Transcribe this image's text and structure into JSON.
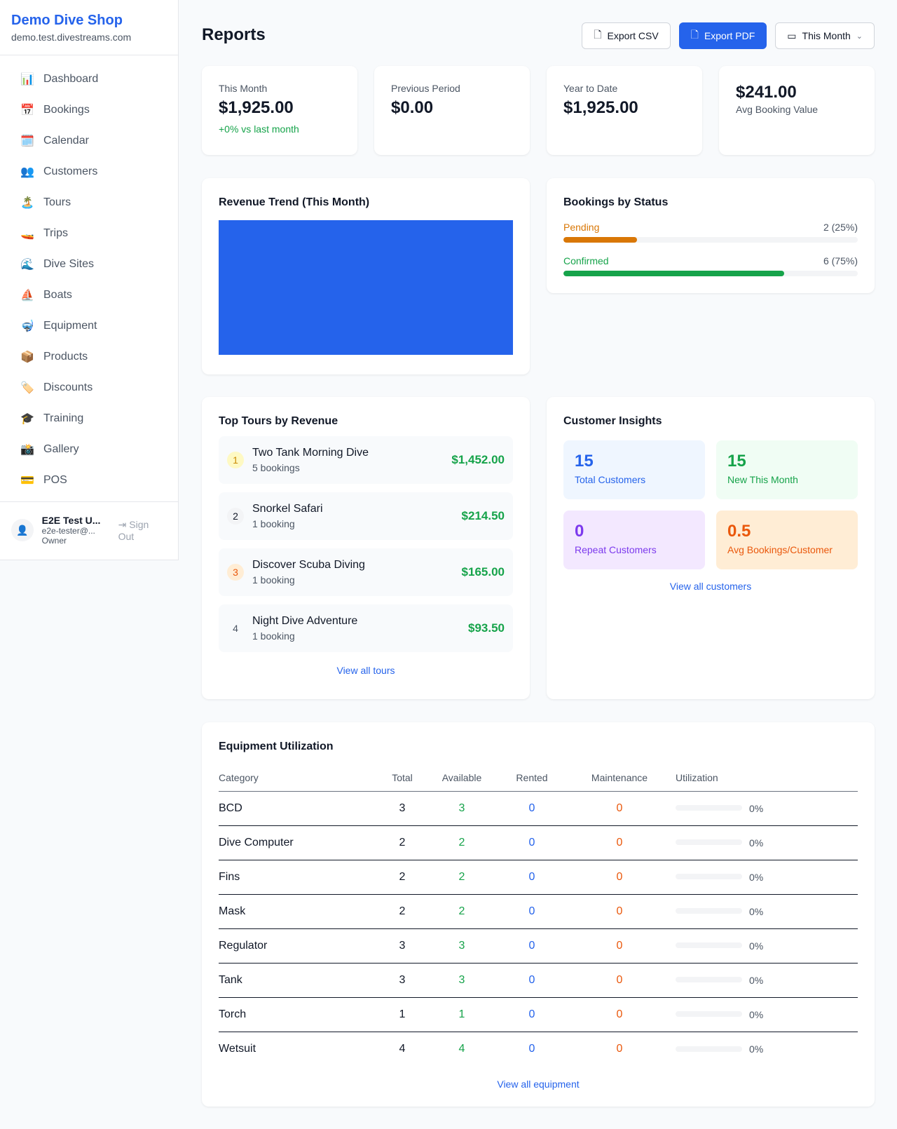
{
  "sidebar": {
    "brand": "Demo Dive Shop",
    "url": "demo.test.divestreams.com",
    "items": [
      {
        "label": "Dashboard",
        "icon": "📊",
        "name": "dashboard"
      },
      {
        "label": "Bookings",
        "icon": "📅",
        "name": "bookings"
      },
      {
        "label": "Calendar",
        "icon": "🗓️",
        "name": "calendar"
      },
      {
        "label": "Customers",
        "icon": "👥",
        "name": "customers"
      },
      {
        "label": "Tours",
        "icon": "🏝️",
        "name": "tours"
      },
      {
        "label": "Trips",
        "icon": "🚤",
        "name": "trips"
      },
      {
        "label": "Dive Sites",
        "icon": "🌊",
        "name": "dive-sites"
      },
      {
        "label": "Boats",
        "icon": "⛵",
        "name": "boats"
      },
      {
        "label": "Equipment",
        "icon": "🤿",
        "name": "equipment"
      },
      {
        "label": "Products",
        "icon": "📦",
        "name": "products"
      },
      {
        "label": "Discounts",
        "icon": "🏷️",
        "name": "discounts"
      },
      {
        "label": "Training",
        "icon": "🎓",
        "name": "training"
      },
      {
        "label": "Gallery",
        "icon": "📸",
        "name": "gallery"
      },
      {
        "label": "POS",
        "icon": "💳",
        "name": "pos"
      }
    ],
    "user": {
      "name": "E2E Test U...",
      "email": "e2e-tester@...",
      "role": "Owner",
      "sign_out": "Sign Out"
    }
  },
  "header": {
    "title": "Reports",
    "export_csv": "Export CSV",
    "export_pdf": "Export PDF",
    "period": "This Month"
  },
  "stats": [
    {
      "label": "This Month",
      "value": "$1,925.00",
      "sub": "+0% vs last month"
    },
    {
      "label": "Previous Period",
      "value": "$0.00"
    },
    {
      "label": "Year to Date",
      "value": "$1,925.00"
    },
    {
      "value": "$241.00",
      "label": "Avg Booking Value"
    }
  ],
  "revenue": {
    "title": "Revenue Trend (This Month)",
    "color": "#2563eb"
  },
  "status": {
    "title": "Bookings by Status",
    "items": [
      {
        "label": "Pending",
        "count": "2 (25%)",
        "percent": 25,
        "color": "#d97706"
      },
      {
        "label": "Confirmed",
        "count": "6 (75%)",
        "percent": 75,
        "color": "#16a34a"
      }
    ]
  },
  "tours": {
    "title": "Top Tours by Revenue",
    "link": "View all tours",
    "items": [
      {
        "rank": "1",
        "name": "Two Tank Morning Dive",
        "count": "5 bookings",
        "revenue": "$1,452.00"
      },
      {
        "rank": "2",
        "name": "Snorkel Safari",
        "count": "1 booking",
        "revenue": "$214.50"
      },
      {
        "rank": "3",
        "name": "Discover Scuba Diving",
        "count": "1 booking",
        "revenue": "$165.00"
      },
      {
        "rank": "4",
        "name": "Night Dive Adventure",
        "count": "1 booking",
        "revenue": "$93.50"
      }
    ]
  },
  "insights": {
    "title": "Customer Insights",
    "link": "View all customers",
    "items": [
      {
        "value": "15",
        "label": "Total Customers"
      },
      {
        "value": "15",
        "label": "New This Month"
      },
      {
        "value": "0",
        "label": "Repeat Customers"
      },
      {
        "value": "0.5",
        "label": "Avg Bookings/Customer"
      }
    ]
  },
  "equipment": {
    "title": "Equipment Utilization",
    "link": "View all equipment",
    "columns": [
      "Category",
      "Total",
      "Available",
      "Rented",
      "Maintenance",
      "Utilization"
    ],
    "rows": [
      [
        "BCD",
        "3",
        "3",
        "0",
        "0",
        "0%"
      ],
      [
        "Dive Computer",
        "2",
        "2",
        "0",
        "0",
        "0%"
      ],
      [
        "Fins",
        "2",
        "2",
        "0",
        "0",
        "0%"
      ],
      [
        "Mask",
        "2",
        "2",
        "0",
        "0",
        "0%"
      ],
      [
        "Regulator",
        "3",
        "3",
        "0",
        "0",
        "0%"
      ],
      [
        "Tank",
        "3",
        "3",
        "0",
        "0",
        "0%"
      ],
      [
        "Torch",
        "1",
        "1",
        "0",
        "0",
        "0%"
      ],
      [
        "Wetsuit",
        "4",
        "4",
        "0",
        "0",
        "0%"
      ]
    ]
  }
}
